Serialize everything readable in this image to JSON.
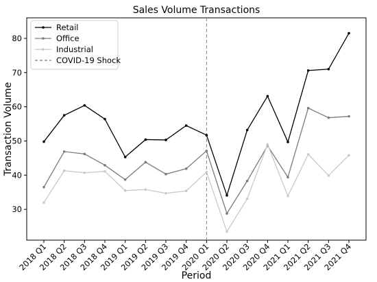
{
  "chart_data": {
    "type": "line",
    "title": "Sales Volume Transactions",
    "xlabel": "Period",
    "ylabel": "Transaction Volume",
    "categories": [
      "2018 Q1",
      "2018 Q2",
      "2018 Q3",
      "2018 Q4",
      "2019 Q1",
      "2019 Q2",
      "2019 Q3",
      "2019 Q4",
      "2020 Q1",
      "2020 Q2",
      "2020 Q3",
      "2020 Q4",
      "2021 Q1",
      "2021 Q2",
      "2021 Q3",
      "2021 Q4"
    ],
    "ylim": [
      21,
      86
    ],
    "yticks": [
      30,
      40,
      50,
      60,
      70,
      80
    ],
    "grid": false,
    "legend_position": "top-left",
    "series": [
      {
        "name": "Retail",
        "color": "#000000",
        "values": [
          49.8,
          57.5,
          60.4,
          56.4,
          45.3,
          50.4,
          50.3,
          54.5,
          51.7,
          34.1,
          53.2,
          63.1,
          49.7,
          70.6,
          71.0,
          81.5
        ]
      },
      {
        "name": "Office",
        "color": "#7a7a7a",
        "values": [
          36.5,
          46.9,
          46.2,
          42.9,
          38.7,
          43.8,
          40.3,
          41.9,
          47.1,
          28.8,
          38.3,
          48.6,
          39.4,
          59.6,
          56.8,
          57.2
        ]
      },
      {
        "name": "Industrial",
        "color": "#c8c8c8",
        "values": [
          32.0,
          41.3,
          40.7,
          41.1,
          35.5,
          35.8,
          34.7,
          35.4,
          40.9,
          23.5,
          33.1,
          49.0,
          33.9,
          46.1,
          39.9,
          45.8
        ]
      }
    ],
    "annotations": [
      {
        "type": "vline",
        "at_category": "2020 Q1",
        "label": "COVID-19 Shock",
        "color": "#808080",
        "style": "dashed"
      }
    ]
  }
}
